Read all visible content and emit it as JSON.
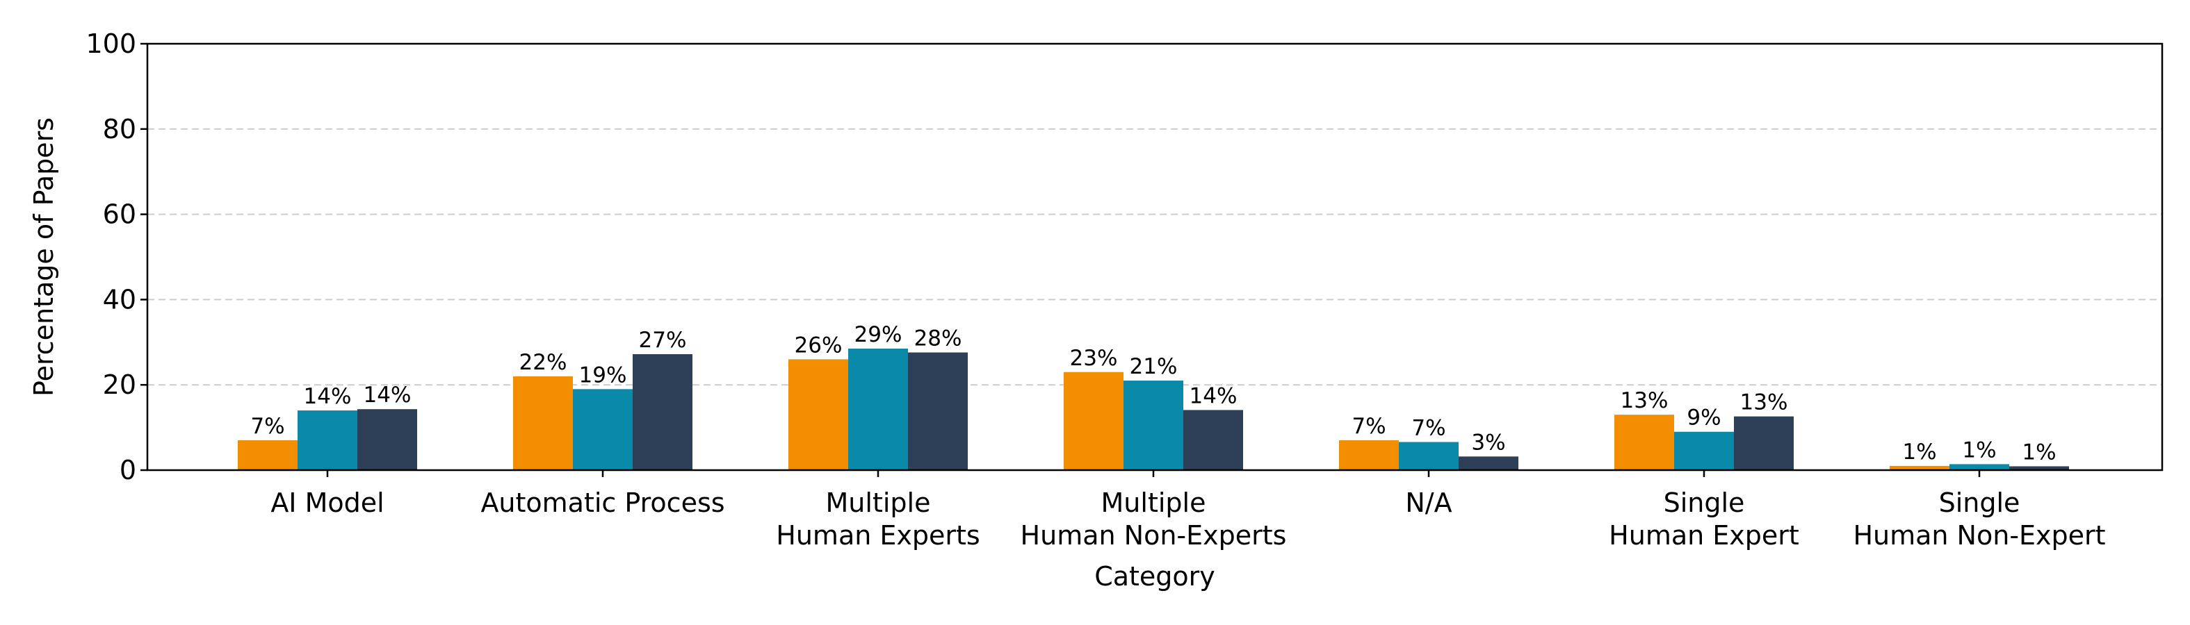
{
  "chart_data": {
    "type": "bar",
    "title": "",
    "xlabel": "Category",
    "ylabel": "Percentage of Papers",
    "ylim": [
      0,
      100
    ],
    "yticks": [
      0,
      20,
      40,
      60,
      80,
      100
    ],
    "grid": "y-dashed",
    "categories": [
      [
        "AI Model"
      ],
      [
        "Automatic Process"
      ],
      [
        "Multiple",
        "Human Experts"
      ],
      [
        "Multiple",
        "Human Non-Experts"
      ],
      [
        "N/A"
      ],
      [
        "Single",
        "Human Expert"
      ],
      [
        "Single",
        "Human Non-Expert"
      ]
    ],
    "series": [
      {
        "color": "#F28E00",
        "values": [
          7,
          22,
          26,
          23,
          7,
          13,
          1
        ]
      },
      {
        "color": "#0A89A8",
        "values": [
          14,
          19,
          28.5,
          21,
          6.6,
          9,
          1.4
        ]
      },
      {
        "color": "#2D4057",
        "values": [
          14.3,
          27.2,
          27.6,
          14.1,
          3.2,
          12.6,
          0.9
        ]
      }
    ],
    "data_labels": [
      [
        "7%",
        "22%",
        "26%",
        "23%",
        "7%",
        "13%",
        "1%"
      ],
      [
        "14%",
        "19%",
        "29%",
        "21%",
        "7%",
        "9%",
        "1%"
      ],
      [
        "14%",
        "27%",
        "28%",
        "14%",
        "3%",
        "13%",
        "1%"
      ]
    ]
  }
}
